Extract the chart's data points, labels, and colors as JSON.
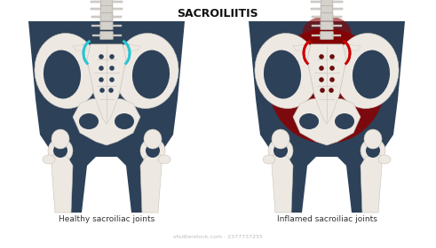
{
  "title": "SACROILIITIS",
  "label_left": "Healthy sacroiliac joints",
  "label_right": "Inflamed sacroiliac joints",
  "bg_color": "#ffffff",
  "body_color": "#2d4159",
  "bone_color": "#ede9e2",
  "bone_outline": "#c8c3ba",
  "spine_color": "#d5d1cb",
  "spine_outline": "#b0aca6",
  "dot_color_healthy": "#2d4159",
  "dot_color_inflamed": "#6b0d0d",
  "highlight_blue": "#29c5d4",
  "highlight_red": "#cc0000",
  "inflame_dark": "#7a0000",
  "inflame_bright": "#cc1111",
  "title_fontsize": 9,
  "label_fontsize": 6.5
}
